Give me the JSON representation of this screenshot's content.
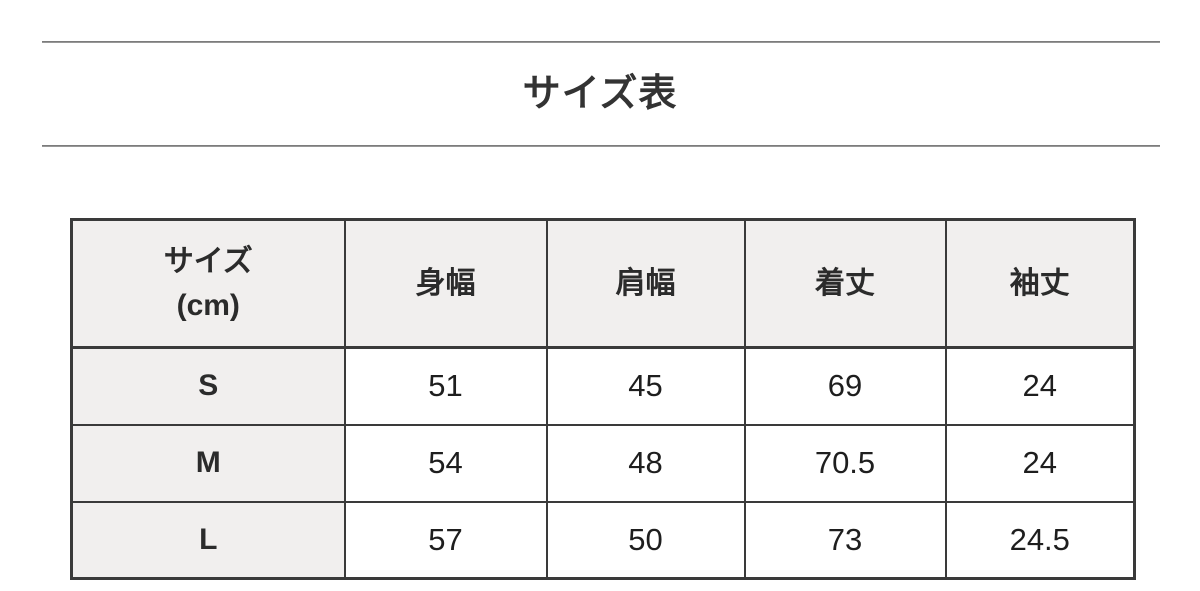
{
  "title": {
    "text": "サイズ表"
  },
  "colors": {
    "header_bg": "#f1efee",
    "cell_bg": "#ffffff",
    "border": "#3a3a3a",
    "title_text": "#333333",
    "rule": "#6e6e6e"
  },
  "size_table": {
    "header": {
      "size_label_line1": "サイズ",
      "size_label_line2": "(cm)",
      "columns": [
        "身幅",
        "肩幅",
        "着丈",
        "袖丈"
      ]
    },
    "rows": [
      {
        "size": "S",
        "values": [
          "51",
          "45",
          "69",
          "24"
        ]
      },
      {
        "size": "M",
        "values": [
          "54",
          "48",
          "70.5",
          "24"
        ]
      },
      {
        "size": "L",
        "values": [
          "57",
          "50",
          "73",
          "24.5"
        ]
      }
    ]
  }
}
